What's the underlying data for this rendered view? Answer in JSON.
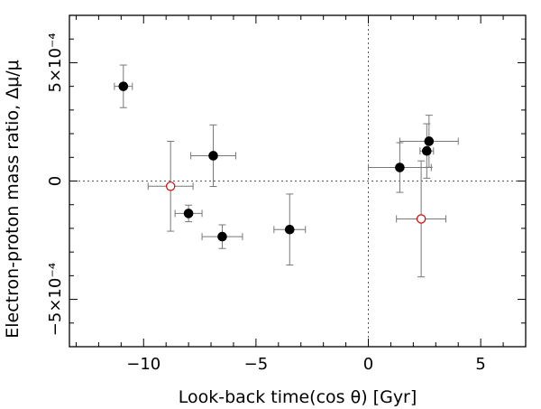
{
  "chart_data": {
    "type": "scatter",
    "title": "",
    "xlabel": "Look-back time(cos θ) [Gyr]",
    "ylabel": "Electron-proton mass ratio, Δμ/μ",
    "xlim": [
      -13.3,
      7
    ],
    "ylim": [
      -0.0007,
      0.0007
    ],
    "x_ticks": [
      {
        "value": -10,
        "label": "−10"
      },
      {
        "value": -5,
        "label": "−5"
      },
      {
        "value": 0,
        "label": "0"
      },
      {
        "value": 5,
        "label": "5"
      }
    ],
    "y_ticks": [
      {
        "value": 0.0005,
        "label": "5×10⁻⁴"
      },
      {
        "value": 0,
        "label": "0"
      },
      {
        "value": -0.0005,
        "label": "−5×10⁻⁴"
      }
    ],
    "reference_lines": {
      "x": 0,
      "y": 0,
      "style": "dotted"
    },
    "series": [
      {
        "name": "filled",
        "marker": "filled-circle",
        "color": "#000000",
        "points": [
          {
            "x": -10.9,
            "y": 0.0004,
            "xerr": 0.4,
            "yerr": 9e-05
          },
          {
            "x": -6.9,
            "y": 0.000107,
            "xerr": 1.0,
            "yerr": 0.00013
          },
          {
            "x": -8.0,
            "y": -0.000137,
            "xerr": 0.6,
            "yerr": 3.5e-05
          },
          {
            "x": -6.5,
            "y": -0.000235,
            "xerr": 0.9,
            "yerr": 5e-05
          },
          {
            "x": -3.5,
            "y": -0.000205,
            "xerr": 0.7,
            "yerr": 0.00015
          },
          {
            "x": 1.4,
            "y": 5.7e-05,
            "xerr": 1.4,
            "yerr": 0.000105
          },
          {
            "x": 2.6,
            "y": 0.000127,
            "xerr": 0.3,
            "yerr": 0.000115
          },
          {
            "x": 2.7,
            "y": 0.000168,
            "xerr": 1.3,
            "yerr": 0.00011
          }
        ]
      },
      {
        "name": "open",
        "marker": "open-circle",
        "color": "#dd0000",
        "points": [
          {
            "x": -8.8,
            "y": -2.2e-05,
            "xerr": 1.0,
            "yerr": 0.00019
          },
          {
            "x": 2.35,
            "y": -0.00016,
            "xerr": 1.1,
            "yerr": 0.000245
          }
        ]
      }
    ]
  }
}
